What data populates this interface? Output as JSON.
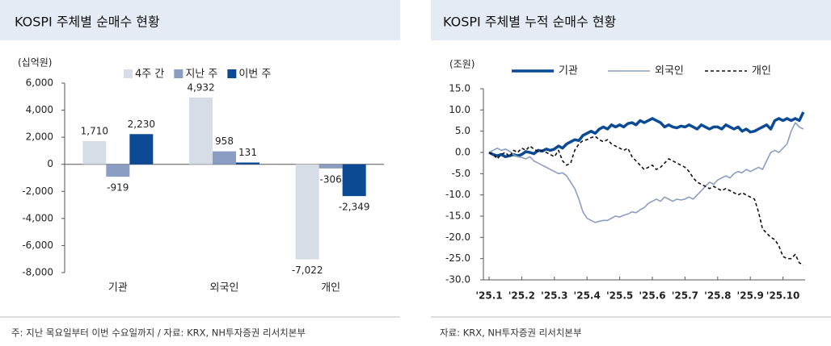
{
  "chart_data": [
    {
      "type": "bar",
      "title": "KOSPI 주체별 순매수 현황",
      "ylabel": "(십억원)",
      "note": "주: 지난 목요일부터 이번 수요일까지 / 자료: KRX, NH투자증권 리서치본부",
      "categories": [
        "기관",
        "외국인",
        "개인"
      ],
      "series": [
        {
          "name": "4주 간",
          "color": "#d6dde6",
          "values": [
            1710,
            4932,
            -7022
          ],
          "value_labels": [
            "1,710",
            "4,932",
            "-7,022"
          ]
        },
        {
          "name": "지난 주",
          "color": "#8c9dc4",
          "values": [
            -919,
            958,
            -306
          ],
          "value_labels": [
            "-919",
            "958",
            "-306"
          ]
        },
        {
          "name": "이번 주",
          "color": "#0d4a94",
          "values": [
            2230,
            131,
            -2349
          ],
          "value_labels": [
            "2,230",
            "131",
            "-2,349"
          ]
        }
      ],
      "ylim": [
        -8000,
        6000
      ],
      "yticks": [
        {
          "value": -8000,
          "label": "-8,000"
        },
        {
          "value": -6000,
          "label": "-6,000"
        },
        {
          "value": -4000,
          "label": "-4,000"
        },
        {
          "value": -2000,
          "label": "-2,000"
        },
        0,
        {
          "value": 2000,
          "label": "2,000"
        },
        {
          "value": 4000,
          "label": "4,000"
        },
        {
          "value": 6000,
          "label": "6,000"
        }
      ]
    },
    {
      "type": "line",
      "title": "KOSPI 주체별 누적 순매수 현황",
      "ylabel": "(조원)",
      "note": "자료: KRX, NH투자증권 리서치본부",
      "categories": [
        "'25.1",
        null,
        null,
        null,
        null,
        null,
        null,
        null,
        "'25.2",
        null,
        null,
        null,
        null,
        null,
        null,
        null,
        "'25.3",
        null,
        null,
        null,
        null,
        null,
        null,
        null,
        "'25.4",
        null,
        null,
        null,
        null,
        null,
        null,
        null,
        "'25.5",
        null,
        null,
        null,
        null,
        null,
        null,
        null,
        "'25.6",
        null,
        null,
        null,
        null,
        null,
        null,
        null,
        "'25.7",
        null,
        null,
        null,
        null,
        null,
        null,
        null,
        "'25.8",
        null,
        null,
        null,
        null,
        null,
        null,
        null,
        "'25.9",
        null,
        null,
        null,
        null,
        null,
        null,
        null,
        "'25.10",
        null,
        null,
        null,
        null,
        null
      ],
      "series": [
        {
          "name": "기관",
          "color": "#0b4a95",
          "width": 3.5,
          "dash": false,
          "values": [
            0,
            -0.5,
            -0.8,
            -0.5,
            -1.0,
            -0.8,
            -0.5,
            -0.8,
            -0.5,
            0.2,
            0,
            -0.3,
            0.5,
            0.3,
            0.8,
            0.5,
            0.8,
            1.5,
            1.0,
            2.0,
            2.5,
            3.0,
            2.8,
            4.0,
            4.5,
            5.0,
            4.5,
            5.5,
            6.0,
            5.5,
            6.5,
            6.0,
            6.5,
            6.0,
            6.8,
            7.0,
            6.5,
            7.5,
            7.0,
            7.5,
            8.0,
            7.5,
            7.0,
            6.0,
            6.5,
            6.0,
            5.8,
            6.2,
            6.0,
            6.5,
            6.0,
            5.5,
            6.5,
            6.0,
            5.5,
            6.0,
            6.0,
            5.5,
            6.5,
            6.0,
            5.5,
            6.0,
            5.0,
            5.5,
            4.8,
            5.0,
            5.5,
            6.0,
            6.5,
            5.5,
            7.5,
            8.0,
            7.5,
            8.0,
            7.5,
            8.0,
            7.5,
            9.5
          ]
        },
        {
          "name": "외국인",
          "color": "#8c9dc4",
          "width": 1.6,
          "dash": false,
          "values": [
            0,
            0.5,
            1.0,
            0.5,
            0.8,
            0.3,
            -0.5,
            -1.0,
            -1.2,
            -1.5,
            -1.0,
            -2.0,
            -2.5,
            -3.0,
            -3.5,
            -4.0,
            -4.5,
            -5.0,
            -4.8,
            -5.5,
            -7.0,
            -8.5,
            -11.0,
            -14.0,
            -15.5,
            -16.0,
            -16.5,
            -16.2,
            -16.0,
            -16.0,
            -15.5,
            -15.0,
            -15.2,
            -14.8,
            -14.5,
            -14.0,
            -14.2,
            -13.5,
            -13.0,
            -12.0,
            -11.5,
            -11.0,
            -11.5,
            -10.5,
            -11.0,
            -11.5,
            -11.0,
            -11.2,
            -11.0,
            -10.5,
            -11.0,
            -10.0,
            -9.0,
            -8.0,
            -7.0,
            -7.5,
            -6.5,
            -6.0,
            -5.5,
            -6.0,
            -5.0,
            -4.5,
            -4.8,
            -4.0,
            -4.5,
            -4.0,
            -3.5,
            -4.0,
            -2.0,
            0.0,
            0.5,
            0.0,
            1.0,
            2.0,
            5.0,
            7.0,
            6.0,
            5.5
          ]
        },
        {
          "name": "개인",
          "color": "#111111",
          "width": 1.6,
          "dash": true,
          "values": [
            0,
            -0.5,
            -1.5,
            -0.5,
            0,
            -1.0,
            0.5,
            0.0,
            1.0,
            0.5,
            1.5,
            0.8,
            0.2,
            0.5,
            0.0,
            -0.5,
            -1.0,
            0.5,
            -2.0,
            -3.0,
            -2.5,
            0.5,
            2.0,
            2.8,
            3.0,
            3.5,
            3.8,
            3.0,
            2.5,
            3.0,
            2.0,
            1.5,
            1.0,
            0.5,
            1.0,
            -1.0,
            -2.0,
            -3.0,
            -4.0,
            -3.5,
            -3.0,
            -4.0,
            -3.5,
            -2.5,
            -1.5,
            -2.0,
            -2.5,
            -3.0,
            -3.5,
            -4.5,
            -6.0,
            -7.0,
            -7.5,
            -8.0,
            -8.5,
            -8.0,
            -8.5,
            -9.0,
            -8.5,
            -9.0,
            -9.5,
            -10.0,
            -9.5,
            -10.0,
            -10.5,
            -11.0,
            -14.0,
            -18.0,
            -19.0,
            -20.0,
            -20.5,
            -22.0,
            -24.5,
            -25.0,
            -25.0,
            -24.0,
            -26.0,
            -26.5
          ]
        }
      ],
      "ylim": [
        -30,
        15
      ],
      "yticks": [
        {
          "value": -30,
          "label": "-30.0"
        },
        {
          "value": -25,
          "label": "-25.0"
        },
        {
          "value": -20,
          "label": "-20.0"
        },
        {
          "value": -15,
          "label": "-15.0"
        },
        {
          "value": -10,
          "label": "-10.0"
        },
        {
          "value": -5,
          "label": "-5.0"
        },
        {
          "value": 0,
          "label": "0.0"
        },
        {
          "value": 5,
          "label": "5.0"
        },
        {
          "value": 10,
          "label": "10.0"
        },
        {
          "value": 15,
          "label": "15.0"
        }
      ]
    }
  ]
}
